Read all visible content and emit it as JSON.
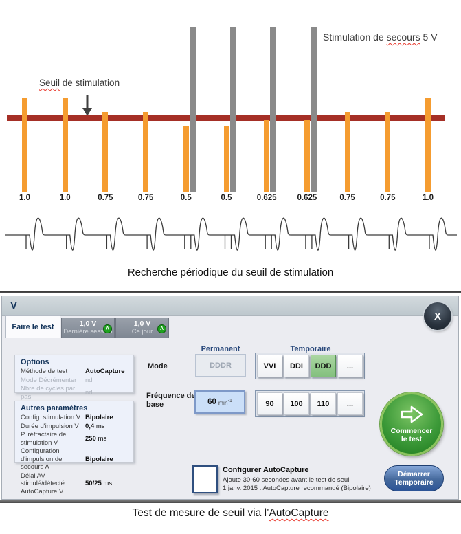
{
  "figure": {
    "threshold_label": {
      "wavy": "Seuil",
      "rest": " de stimulation"
    },
    "backup_label": {
      "pre": "Stimulation de ",
      "wavy": "secours",
      "post": " 5 V"
    },
    "caption": "Recherche périodique du seuil de stimulation"
  },
  "chart_data": {
    "type": "bar",
    "title": "Recherche périodique du seuil de stimulation",
    "categories": [
      "1.0",
      "1.0",
      "0.75",
      "0.75",
      "0.5",
      "0.5",
      "0.625",
      "0.625",
      "0.75",
      "0.75",
      "1.0"
    ],
    "values": [
      1.0,
      1.0,
      0.75,
      0.75,
      0.5,
      0.5,
      0.625,
      0.625,
      0.75,
      0.75,
      1.0
    ],
    "unit": "V",
    "ylim": [
      0,
      5
    ],
    "threshold_line_label": "Seuil de stimulation",
    "backup_pulse_label": "Stimulation de secours 5 V",
    "backup_pulse_voltage": 5,
    "backup_pulse_indices": [
      4,
      5,
      6,
      7
    ],
    "bar_color": "#F59C30",
    "backup_bar_color": "#8A8A8A",
    "threshold_line_color": "#A52F26",
    "legend": "none",
    "grid": false
  },
  "dialog": {
    "title": "V",
    "close_label": "X",
    "tabs": [
      {
        "label": "Faire le test",
        "active": true
      },
      {
        "value": "1,0 V",
        "label": "Dernière session",
        "badge": "A"
      },
      {
        "value": "1,0 V",
        "label": "Ce jour",
        "badge": "A"
      }
    ],
    "options_panel": {
      "title": "Options",
      "rows": [
        {
          "label": "Méthode de test",
          "value": "AutoCapture",
          "unit": "",
          "disabled": false
        },
        {
          "label": "Mode Décrémenter",
          "value": "nd",
          "unit": "",
          "disabled": true
        },
        {
          "label": "Nbre de cycles par pas",
          "value": "nd",
          "unit": "",
          "disabled": true
        }
      ]
    },
    "other_params_panel": {
      "title": "Autres paramètres",
      "rows": [
        {
          "label": "Config. stimulation V",
          "value": "Bipolaire",
          "unit": "",
          "disabled": false
        },
        {
          "label": "Durée d'impulsion V",
          "value": "0,4",
          "unit": " ms",
          "disabled": false
        },
        {
          "label": "P. réfractaire de stimulation V",
          "value": "250",
          "unit": " ms",
          "disabled": false
        },
        {
          "label": "Configuration d'impulsion de secours A",
          "value": "Bipolaire",
          "unit": "",
          "disabled": false
        },
        {
          "label": "Délai AV stimulé/détecté AutoCapture V.",
          "value": "50/25",
          "unit": " ms",
          "disabled": false
        }
      ]
    },
    "mode_row": {
      "label": "Mode",
      "permanent_header": "Permanent",
      "temporary_header": "Temporaire",
      "permanent_value": "DDDR",
      "temporary_options": [
        {
          "label": "VVI",
          "selected": false
        },
        {
          "label": "DDI",
          "selected": false
        },
        {
          "label": "DDD",
          "selected": true
        },
        {
          "label": "...",
          "selected": false
        }
      ]
    },
    "rate_row": {
      "label": "Fréquence de base",
      "current_value": "60",
      "current_unit": "min",
      "current_unit_sup": "-1",
      "options": [
        {
          "label": "90",
          "selected": false
        },
        {
          "label": "100",
          "selected": false
        },
        {
          "label": "110",
          "selected": false
        },
        {
          "label": "...",
          "selected": false
        }
      ]
    },
    "autocapture": {
      "title": "Configurer AutoCapture",
      "line1": "Ajoute 30-60 secondes avant le test de seuil",
      "line2": "1 janv. 2015 : AutoCapture recommandé (Bipolaire)"
    },
    "start_test_button": {
      "line1": "Commencer",
      "line2": "le test"
    },
    "temporary_button": {
      "line1": "Démarrer",
      "line2": "Temporaire"
    }
  },
  "bottom_caption": {
    "pre": "Test de mesure de seuil via l’",
    "wavy": "AutoCapture"
  }
}
